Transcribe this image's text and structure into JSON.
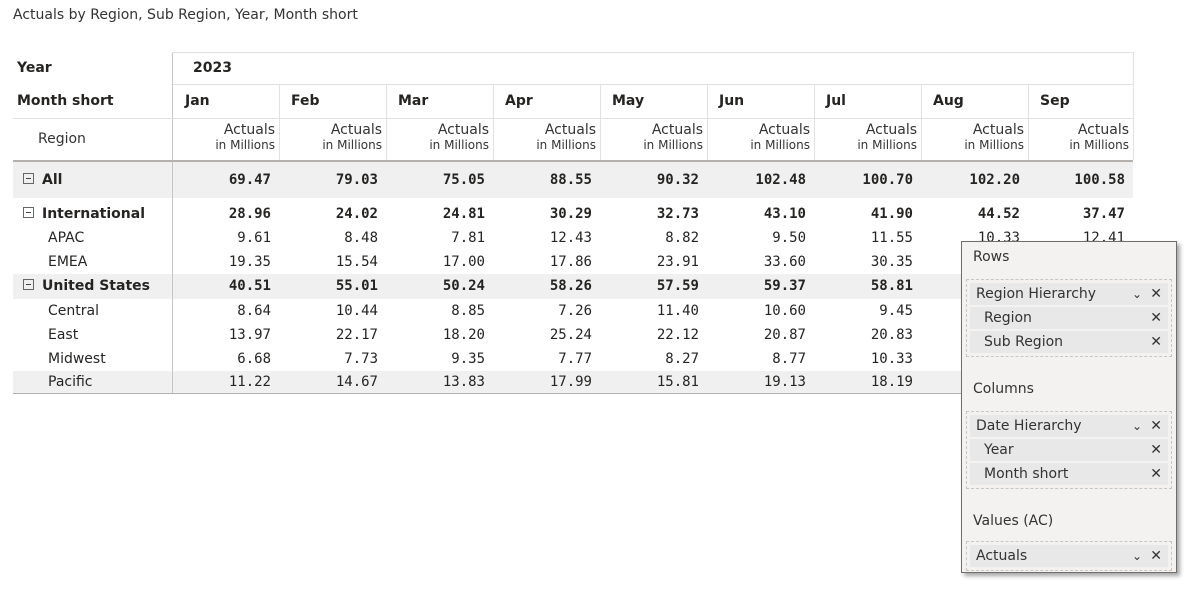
{
  "visual_title": "Actuals by Region, Sub Region, Year, Month short",
  "matrix": {
    "col_headers": {
      "year_label": "Year",
      "month_label": "Month short",
      "region_label": "Region",
      "year": "2023",
      "months": [
        "Jan",
        "Feb",
        "Mar",
        "Apr",
        "May",
        "Jun",
        "Jul",
        "Aug",
        "Sep"
      ],
      "measure_line1": "Actuals",
      "measure_line2": "in Millions"
    },
    "rows": [
      {
        "label": "All",
        "level": 0,
        "expand": true,
        "values": [
          "69.47",
          "79.03",
          "75.05",
          "88.55",
          "90.32",
          "102.48",
          "100.70",
          "102.20",
          "100.58"
        ]
      },
      {
        "label": "International",
        "level": 1,
        "expand": true,
        "values": [
          "28.96",
          "24.02",
          "24.81",
          "30.29",
          "32.73",
          "43.10",
          "41.90",
          "44.52",
          "37.47"
        ]
      },
      {
        "label": "APAC",
        "level": 2,
        "expand": false,
        "values": [
          "9.61",
          "8.48",
          "7.81",
          "12.43",
          "8.82",
          "9.50",
          "11.55",
          "10.33",
          "12.41"
        ]
      },
      {
        "label": "EMEA",
        "level": 2,
        "expand": false,
        "values": [
          "19.35",
          "15.54",
          "17.00",
          "17.86",
          "23.91",
          "33.60",
          "30.35",
          "",
          ""
        ]
      },
      {
        "label": "United States",
        "level": 1,
        "expand": true,
        "values": [
          "40.51",
          "55.01",
          "50.24",
          "58.26",
          "57.59",
          "59.37",
          "58.81",
          "",
          ""
        ]
      },
      {
        "label": "Central",
        "level": 2,
        "expand": false,
        "values": [
          "8.64",
          "10.44",
          "8.85",
          "7.26",
          "11.40",
          "10.60",
          "9.45",
          "",
          ""
        ]
      },
      {
        "label": "East",
        "level": 2,
        "expand": false,
        "values": [
          "13.97",
          "22.17",
          "18.20",
          "25.24",
          "22.12",
          "20.87",
          "20.83",
          "",
          ""
        ]
      },
      {
        "label": "Midwest",
        "level": 2,
        "expand": false,
        "values": [
          "6.68",
          "7.73",
          "9.35",
          "7.77",
          "8.27",
          "8.77",
          "10.33",
          "",
          ""
        ]
      },
      {
        "label": "Pacific",
        "level": 2,
        "expand": false,
        "values": [
          "11.22",
          "14.67",
          "13.83",
          "17.99",
          "15.81",
          "19.13",
          "18.19",
          "",
          ""
        ]
      }
    ]
  },
  "field_panel": {
    "rows_title": "Rows",
    "rows_fields": [
      {
        "label": "Region Hierarchy",
        "type": "hierarchy"
      },
      {
        "label": "Region",
        "type": "level"
      },
      {
        "label": "Sub Region",
        "type": "level"
      }
    ],
    "columns_title": "Columns",
    "columns_fields": [
      {
        "label": "Date Hierarchy",
        "type": "hierarchy"
      },
      {
        "label": "Year",
        "type": "level"
      },
      {
        "label": "Month short",
        "type": "level"
      }
    ],
    "values_title": "Values (AC)",
    "values_fields": [
      {
        "label": "Actuals",
        "type": "hierarchy"
      }
    ],
    "remove_glyph": "✕",
    "chevron_glyph": "⌄"
  }
}
